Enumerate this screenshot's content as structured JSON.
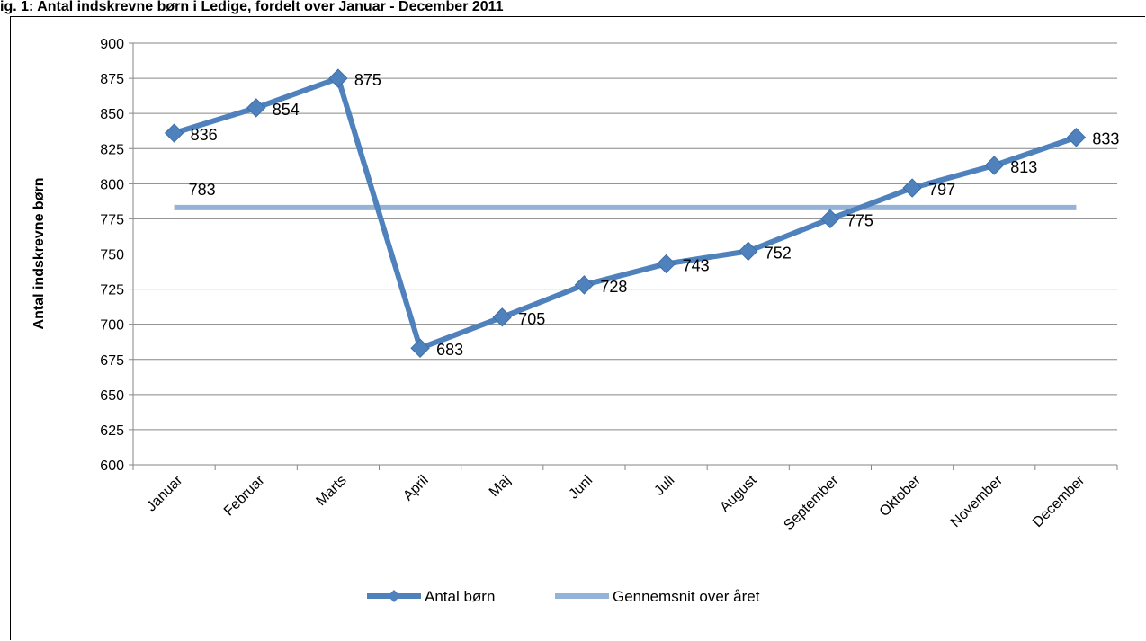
{
  "page": {
    "header_fragment": "ig. 1: Antal indskrevne børn i Ledige, fordelt over Januar - December 2011"
  },
  "chart_data": {
    "type": "line",
    "title": "",
    "xlabel": "",
    "ylabel": "Antal indskrevne børn",
    "ylim": [
      600,
      900
    ],
    "yticks": [
      600,
      625,
      650,
      675,
      700,
      725,
      750,
      775,
      800,
      825,
      850,
      875,
      900
    ],
    "categories": [
      "Januar",
      "Februar",
      "Marts",
      "April",
      "Maj",
      "Juni",
      "Juli",
      "August",
      "September",
      "Oktober",
      "November",
      "December"
    ],
    "grid": true,
    "legend_position": "bottom",
    "series": [
      {
        "name": "Antal børn",
        "color": "#4f81bd",
        "marker": "diamond",
        "values": [
          836,
          854,
          875,
          683,
          705,
          728,
          743,
          752,
          775,
          797,
          813,
          833
        ],
        "data_labels": true
      },
      {
        "name": "Gennemsnit over året",
        "color": "#95b3d7",
        "marker": "none",
        "values": [
          783,
          783,
          783,
          783,
          783,
          783,
          783,
          783,
          783,
          783,
          783,
          783
        ],
        "data_labels": "first-only"
      }
    ]
  }
}
